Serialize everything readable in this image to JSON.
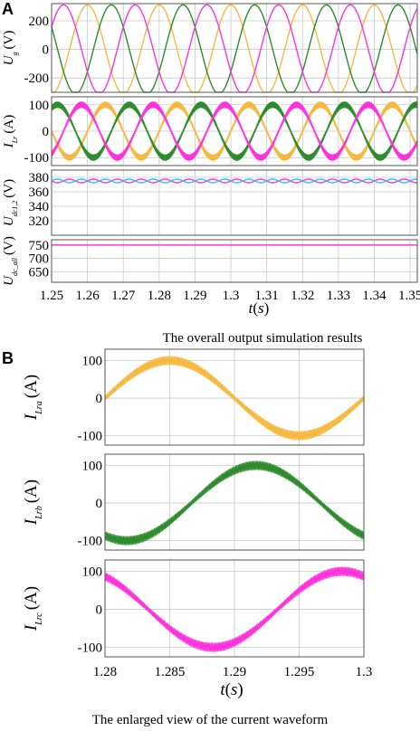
{
  "panel_a": {
    "label": "A",
    "caption": "The overall output simulation results",
    "xlabel": {
      "var": "t",
      "unit": "s"
    },
    "x_ticks": [
      "1.25",
      "1.26",
      "1.27",
      "1.28",
      "1.29",
      "1.3",
      "1.31",
      "1.32",
      "1.33",
      "1.34",
      "1.35"
    ]
  },
  "panel_b": {
    "label": "B",
    "caption": "The enlarged view of the current waveform",
    "xlabel": {
      "var": "t",
      "unit": "s"
    },
    "x_ticks": [
      "1.28",
      "1.285",
      "1.29",
      "1.295",
      "1.3"
    ]
  },
  "colors": {
    "phase_a": "#f5b942",
    "phase_b": "#2e8b2e",
    "phase_c": "#ff33dd",
    "cyan": "#22c7ee",
    "grid": "#c8c8c8"
  },
  "chart_data": [
    {
      "type": "line",
      "panel": "A",
      "ylabel": {
        "main": "U",
        "sub": "g",
        "unit": "(V)"
      },
      "xlim": [
        1.25,
        1.352
      ],
      "ylim": [
        -300,
        320
      ],
      "y_ticks": [
        "200",
        "0",
        "-200"
      ],
      "y_tick_values": [
        200,
        0,
        -200
      ],
      "waveform": {
        "amplitude": 311,
        "frequency_hz": 50
      },
      "series": [
        {
          "color": "#f5b942",
          "phase_deg": 90
        },
        {
          "color": "#2e8b2e",
          "phase_deg": -30
        },
        {
          "color": "#ff33dd",
          "phase_deg": 210
        }
      ]
    },
    {
      "type": "line",
      "panel": "A",
      "ylabel": {
        "main": "I",
        "sub": "Lr",
        "unit": "(A)"
      },
      "xlim": [
        1.25,
        1.352
      ],
      "ylim": [
        -130,
        130
      ],
      "y_ticks": [
        "100",
        "0",
        "-100"
      ],
      "y_tick_values": [
        100,
        0,
        -100
      ],
      "waveform": {
        "amplitude": 100,
        "frequency_hz": 50,
        "ripple": 12
      },
      "series": [
        {
          "color": "#f5b942",
          "phase_deg": 0
        },
        {
          "color": "#2e8b2e",
          "phase_deg": -120
        },
        {
          "color": "#ff33dd",
          "phase_deg": 120
        }
      ]
    },
    {
      "type": "line",
      "panel": "A",
      "ylabel": {
        "main": "U",
        "sub": "dc1,2",
        "unit": "(V)"
      },
      "xlim": [
        1.25,
        1.352
      ],
      "ylim": [
        300,
        390
      ],
      "y_ticks": [
        "380",
        "360",
        "340",
        "320"
      ],
      "y_tick_values": [
        380,
        360,
        340,
        320
      ],
      "waveform": {
        "mean": 375,
        "amplitude": 2.5,
        "frequency_hz": 150
      },
      "series": [
        {
          "color": "#ff33dd",
          "phase_deg": 0
        },
        {
          "color": "#22c7ee",
          "phase_deg": 180
        }
      ]
    },
    {
      "type": "line",
      "panel": "A",
      "ylabel": {
        "main": "U",
        "sub": "dc_all",
        "unit": "(V)"
      },
      "xlim": [
        1.25,
        1.352
      ],
      "ylim": [
        610,
        770
      ],
      "y_ticks": [
        "750",
        "700",
        "650"
      ],
      "y_tick_values": [
        750,
        700,
        650
      ],
      "series": [
        {
          "color": "#ff33dd",
          "value": 750
        }
      ]
    },
    {
      "type": "line",
      "panel": "B",
      "ylabel": {
        "main": "I",
        "sub": "Lra",
        "unit": "(A)"
      },
      "xlim": [
        1.28,
        1.3
      ],
      "ylim": [
        -125,
        130
      ],
      "y_ticks": [
        "100",
        "0",
        "-100"
      ],
      "y_tick_values": [
        100,
        0,
        -100
      ],
      "waveform": {
        "amplitude": 100,
        "frequency_hz": 50,
        "phase_deg": 0,
        "ripple": 12
      },
      "series": [
        {
          "color": "#f5b942"
        }
      ]
    },
    {
      "type": "line",
      "panel": "B",
      "ylabel": {
        "main": "I",
        "sub": "Lrb",
        "unit": "(A)"
      },
      "xlim": [
        1.28,
        1.3
      ],
      "ylim": [
        -125,
        130
      ],
      "y_ticks": [
        "100",
        "0",
        "-100"
      ],
      "y_tick_values": [
        100,
        0,
        -100
      ],
      "waveform": {
        "amplitude": 100,
        "frequency_hz": 50,
        "phase_deg": -120,
        "ripple": 12
      },
      "series": [
        {
          "color": "#2e8b2e"
        }
      ]
    },
    {
      "type": "line",
      "panel": "B",
      "ylabel": {
        "main": "I",
        "sub": "Lrc",
        "unit": "(A)"
      },
      "xlim": [
        1.28,
        1.3
      ],
      "ylim": [
        -125,
        130
      ],
      "y_ticks": [
        "100",
        "0",
        "-100"
      ],
      "y_tick_values": [
        100,
        0,
        -100
      ],
      "waveform": {
        "amplitude": 100,
        "frequency_hz": 50,
        "phase_deg": 120,
        "ripple": 12
      },
      "series": [
        {
          "color": "#ff33dd"
        }
      ]
    }
  ]
}
